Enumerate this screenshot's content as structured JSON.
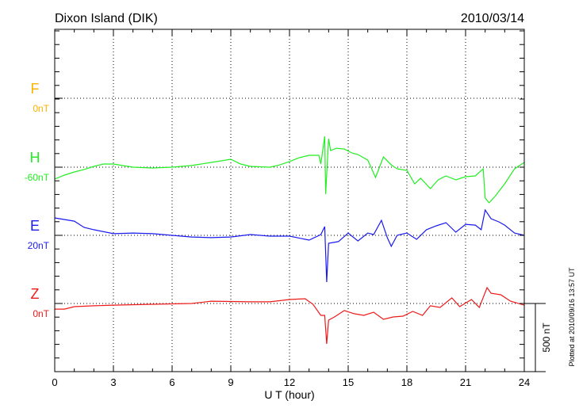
{
  "chart_data": {
    "type": "line",
    "title": "Dixon Island (DIK)",
    "date": "2010/03/14",
    "xlabel": "U T (hour)",
    "xlim": [
      0,
      24
    ],
    "xticks": [
      "0",
      "3",
      "6",
      "9",
      "12",
      "15",
      "18",
      "21",
      "24"
    ],
    "grid": true,
    "scale_bar_label": "500 nT",
    "scale_bar_nT": 500,
    "footer": "Plotted at 2010/09/16 13:57 UT",
    "series": [
      {
        "name": "F",
        "offset_label": "0nT",
        "color": "#ffb000",
        "points": []
      },
      {
        "name": "H",
        "offset_label": "-60nT",
        "color": "#22ee22",
        "points": [
          [
            0,
            -87
          ],
          [
            0.5,
            -58
          ],
          [
            1,
            -35
          ],
          [
            1.5,
            -17
          ],
          [
            2,
            6
          ],
          [
            2.5,
            23
          ],
          [
            3,
            23
          ],
          [
            4,
            0
          ],
          [
            5,
            -6
          ],
          [
            6,
            0
          ],
          [
            7,
            12
          ],
          [
            8,
            35
          ],
          [
            9,
            58
          ],
          [
            9.5,
            23
          ],
          [
            10,
            6
          ],
          [
            11,
            0
          ],
          [
            11.5,
            17
          ],
          [
            12,
            41
          ],
          [
            12.5,
            70
          ],
          [
            13,
            87
          ],
          [
            13.5,
            87
          ],
          [
            13.6,
            23
          ],
          [
            13.8,
            226
          ],
          [
            13.85,
            -197
          ],
          [
            14,
            209
          ],
          [
            14.1,
            122
          ],
          [
            14.4,
            139
          ],
          [
            14.8,
            133
          ],
          [
            15.2,
            104
          ],
          [
            15.5,
            93
          ],
          [
            16,
            52
          ],
          [
            16.4,
            -75
          ],
          [
            16.8,
            75
          ],
          [
            17.2,
            17
          ],
          [
            17.5,
            -12
          ],
          [
            18,
            -23
          ],
          [
            18.4,
            -122
          ],
          [
            18.7,
            -81
          ],
          [
            19.2,
            -157
          ],
          [
            19.6,
            -93
          ],
          [
            20,
            -64
          ],
          [
            20.5,
            -93
          ],
          [
            21,
            -70
          ],
          [
            21.5,
            -64
          ],
          [
            21.9,
            -12
          ],
          [
            22,
            -226
          ],
          [
            22.2,
            -261
          ],
          [
            22.5,
            -215
          ],
          [
            23,
            -122
          ],
          [
            23.5,
            -12
          ],
          [
            24,
            35
          ]
        ]
      },
      {
        "name": "E",
        "offset_label": "20nT",
        "color": "#1a1aee",
        "points": [
          [
            0,
            128
          ],
          [
            1,
            104
          ],
          [
            1.5,
            58
          ],
          [
            2,
            41
          ],
          [
            3,
            12
          ],
          [
            4,
            17
          ],
          [
            5,
            12
          ],
          [
            6,
            0
          ],
          [
            7,
            -12
          ],
          [
            8,
            -17
          ],
          [
            9,
            -12
          ],
          [
            10,
            6
          ],
          [
            11,
            -6
          ],
          [
            12,
            -6
          ],
          [
            13,
            -35
          ],
          [
            13.6,
            6
          ],
          [
            13.8,
            64
          ],
          [
            13.9,
            -343
          ],
          [
            14,
            -58
          ],
          [
            14.5,
            -46
          ],
          [
            15,
            17
          ],
          [
            15.5,
            -41
          ],
          [
            16,
            17
          ],
          [
            16.3,
            6
          ],
          [
            16.7,
            110
          ],
          [
            17,
            -17
          ],
          [
            17.2,
            -81
          ],
          [
            17.5,
            0
          ],
          [
            18,
            17
          ],
          [
            18.5,
            -29
          ],
          [
            19,
            41
          ],
          [
            19.5,
            70
          ],
          [
            20,
            93
          ],
          [
            20.5,
            23
          ],
          [
            21,
            81
          ],
          [
            21.5,
            75
          ],
          [
            21.8,
            41
          ],
          [
            22,
            186
          ],
          [
            22.3,
            122
          ],
          [
            22.7,
            99
          ],
          [
            23,
            75
          ],
          [
            23.5,
            17
          ],
          [
            24,
            0
          ]
        ]
      },
      {
        "name": "Z",
        "offset_label": "0nT",
        "color": "#ee1a1a",
        "points": [
          [
            0,
            -41
          ],
          [
            0.5,
            -41
          ],
          [
            1,
            -23
          ],
          [
            2,
            -17
          ],
          [
            3,
            -12
          ],
          [
            5,
            -6
          ],
          [
            7,
            0
          ],
          [
            8,
            17
          ],
          [
            10,
            12
          ],
          [
            11,
            12
          ],
          [
            12,
            29
          ],
          [
            12.8,
            35
          ],
          [
            13.2,
            -6
          ],
          [
            13.6,
            -87
          ],
          [
            13.8,
            -87
          ],
          [
            13.9,
            -296
          ],
          [
            14,
            -122
          ],
          [
            14.3,
            -99
          ],
          [
            14.8,
            -52
          ],
          [
            15.3,
            -75
          ],
          [
            15.8,
            -87
          ],
          [
            16.3,
            -64
          ],
          [
            16.8,
            -116
          ],
          [
            17.3,
            -99
          ],
          [
            17.8,
            -93
          ],
          [
            18.3,
            -58
          ],
          [
            18.8,
            -87
          ],
          [
            19.2,
            -17
          ],
          [
            19.7,
            -29
          ],
          [
            20.3,
            41
          ],
          [
            20.7,
            -23
          ],
          [
            21.3,
            29
          ],
          [
            21.7,
            -29
          ],
          [
            22.1,
            116
          ],
          [
            22.3,
            75
          ],
          [
            22.8,
            64
          ],
          [
            23.3,
            17
          ],
          [
            24,
            -12
          ]
        ]
      }
    ]
  }
}
